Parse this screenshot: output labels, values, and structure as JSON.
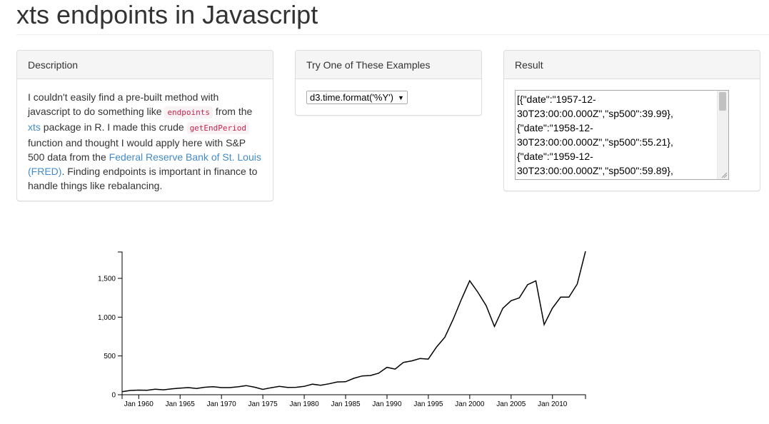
{
  "page": {
    "title": "xts endpoints in Javascript"
  },
  "description_panel": {
    "heading": "Description",
    "text_1": "I couldn't easily find a pre-built method with javascript to do something like ",
    "code_1": "endpoints",
    "text_2": " from the ",
    "link_1": "xts",
    "text_3": " package in R. I made this crude ",
    "code_2": "getEndPeriod",
    "text_4": " function and thought I would apply here with S&P 500 data from the ",
    "link_2": "Federal Reserve Bank of St. Louis (FRED)",
    "text_5": ". Finding endpoints is important in finance to handle things like rebalancing."
  },
  "examples_panel": {
    "heading": "Try One of These Examples",
    "selected": "d3.time.format('%Y')"
  },
  "result_panel": {
    "heading": "Result",
    "lines": [
      "[{\"date\":\"1957-12-",
      "30T23:00:00.000Z\",\"sp500\":39.99},",
      "{\"date\":\"1958-12-",
      "30T23:00:00.000Z\",\"sp500\":55.21},",
      "{\"date\":\"1959-12-",
      "30T23:00:00.000Z\",\"sp500\":59.89},"
    ]
  },
  "colors": {
    "line": "#000000",
    "link": "#428bca",
    "code_fg": "#c7254e",
    "code_bg": "#f9f2f4"
  },
  "chart_data": {
    "type": "line",
    "title": "",
    "xlabel": "",
    "ylabel": "",
    "x_tick_labels": [
      "Jan 1960",
      "Jan 1965",
      "Jan 1970",
      "Jan 1975",
      "Jan 1980",
      "Jan 1985",
      "Jan 1990",
      "Jan 1995",
      "Jan 2000",
      "Jan 2005",
      "Jan 2010"
    ],
    "x_tick_years": [
      1960,
      1965,
      1970,
      1975,
      1980,
      1985,
      1990,
      1995,
      2000,
      2005,
      2010
    ],
    "y_ticks": [
      0,
      500,
      1000,
      1500
    ],
    "y_tick_labels": [
      "0",
      "500",
      "1,000",
      "1,500"
    ],
    "xlim": [
      1957.99,
      2013.99
    ],
    "ylim": [
      0,
      1840
    ],
    "series": [
      {
        "name": "sp500",
        "x": [
          1957.99,
          1958.99,
          1959.99,
          1960.99,
          1961.99,
          1962.99,
          1963.99,
          1964.99,
          1965.99,
          1966.99,
          1967.99,
          1968.99,
          1969.99,
          1970.99,
          1971.99,
          1972.99,
          1973.99,
          1974.99,
          1975.99,
          1976.99,
          1977.99,
          1978.99,
          1979.99,
          1980.99,
          1981.99,
          1982.99,
          1983.99,
          1984.99,
          1985.99,
          1986.99,
          1987.99,
          1988.99,
          1989.99,
          1990.99,
          1991.99,
          1992.99,
          1993.99,
          1994.99,
          1995.99,
          1996.99,
          1997.99,
          1998.99,
          1999.99,
          2000.99,
          2001.99,
          2002.99,
          2003.99,
          2004.99,
          2005.99,
          2006.99,
          2007.99,
          2008.99,
          2009.99,
          2010.99,
          2011.99,
          2012.99,
          2013.99
        ],
        "values": [
          39.99,
          55.21,
          59.89,
          58.11,
          71.55,
          63.1,
          75.02,
          84.75,
          92.43,
          80.33,
          96.47,
          103.86,
          92.06,
          92.15,
          102.09,
          118.05,
          97.55,
          68.56,
          90.19,
          107.46,
          95.1,
          96.11,
          107.94,
          135.76,
          122.55,
          140.64,
          164.93,
          167.24,
          211.28,
          242.17,
          247.08,
          277.72,
          353.4,
          330.22,
          417.09,
          435.71,
          466.45,
          459.27,
          615.93,
          740.74,
          970.43,
          1229.23,
          1469.25,
          1320.28,
          1148.08,
          879.82,
          1111.92,
          1211.92,
          1248.29,
          1418.3,
          1468.36,
          903.25,
          1115.1,
          1257.64,
          1257.6,
          1426.19,
          1848.36
        ]
      }
    ]
  }
}
